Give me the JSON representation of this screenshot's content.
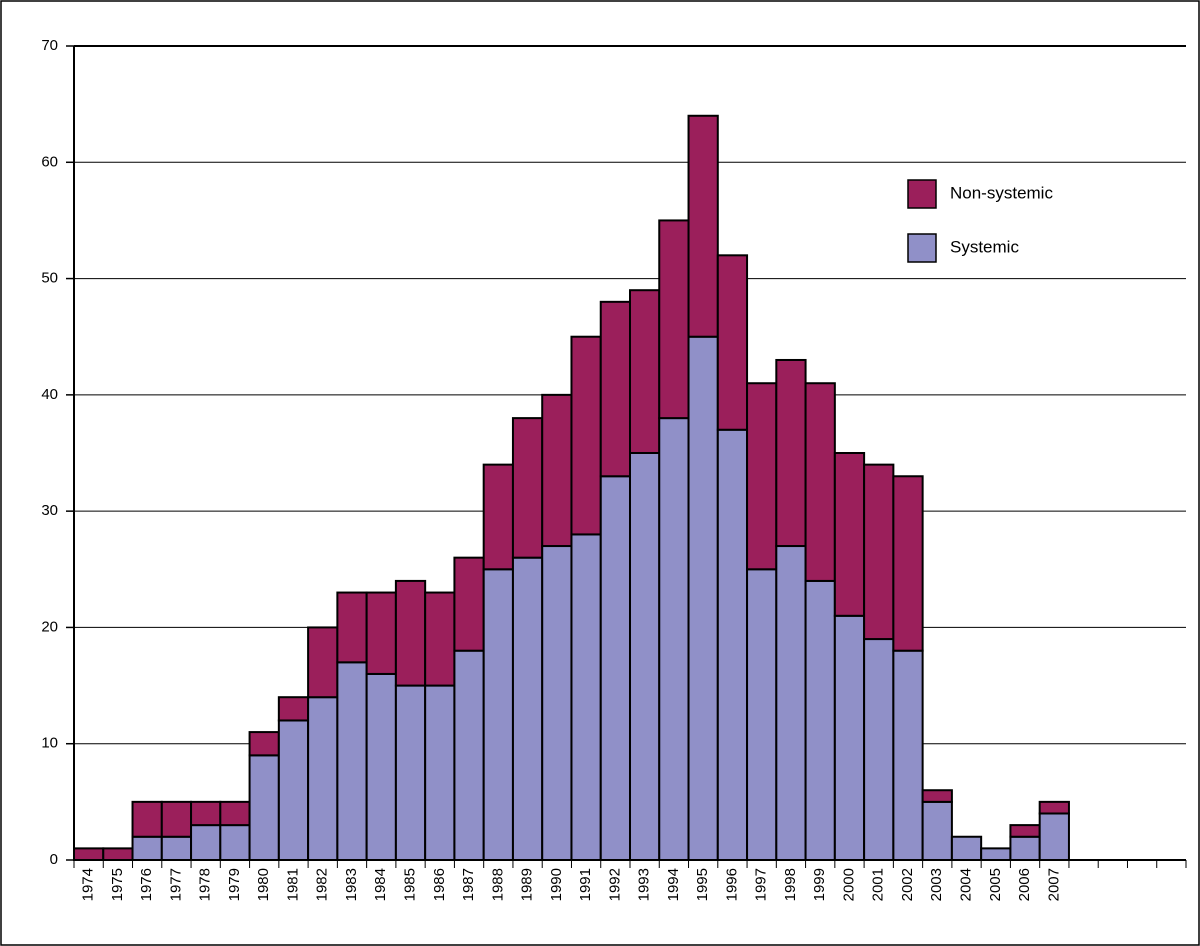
{
  "chart_data": {
    "type": "stacked_bar",
    "categories": [
      "1974",
      "1975",
      "1976",
      "1977",
      "1978",
      "1979",
      "1980",
      "1981",
      "1982",
      "1983",
      "1984",
      "1985",
      "1986",
      "1987",
      "1988",
      "1989",
      "1990",
      "1991",
      "1992",
      "1993",
      "1994",
      "1995",
      "1996",
      "1997",
      "1998",
      "1999",
      "2000",
      "2001",
      "2002",
      "2003",
      "2004",
      "2005",
      "2006",
      "2007",
      null,
      null,
      null,
      null
    ],
    "series": [
      {
        "name": "Systemic",
        "color": "#9090c8",
        "values": [
          0,
          0,
          2,
          2,
          3,
          3,
          9,
          12,
          14,
          17,
          16,
          15,
          15,
          18,
          25,
          26,
          27,
          28,
          33,
          35,
          38,
          45,
          37,
          25,
          27,
          24,
          21,
          19,
          18,
          5,
          2,
          1,
          2,
          4,
          null,
          null,
          null,
          null
        ]
      },
      {
        "name": "Non-systemic",
        "color": "#9b1f5b",
        "values": [
          1,
          1,
          3,
          3,
          2,
          2,
          2,
          2,
          6,
          6,
          7,
          9,
          8,
          8,
          9,
          12,
          13,
          17,
          15,
          14,
          17,
          19,
          15,
          16,
          16,
          17,
          14,
          15,
          15,
          1,
          0,
          0,
          1,
          1,
          null,
          null,
          null,
          null
        ]
      }
    ],
    "ylim": [
      0,
      70
    ],
    "yticks": [
      0,
      10,
      20,
      30,
      40,
      50,
      60,
      70
    ],
    "grid": true,
    "legend": "upper right"
  }
}
